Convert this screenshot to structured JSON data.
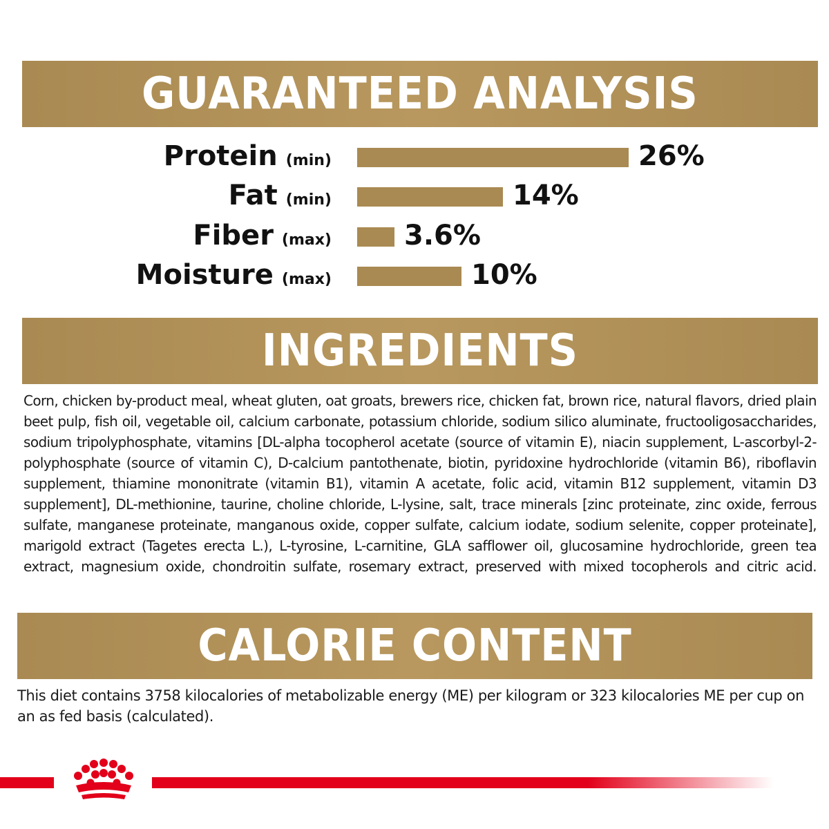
{
  "analysis": {
    "title": "GUARANTEED ANALYSIS",
    "rows": [
      {
        "name": "Protein",
        "qualifier": "(min)",
        "percent_text": "26%",
        "value": 26
      },
      {
        "name": "Fat",
        "qualifier": "(min)",
        "percent_text": "14%",
        "value": 14
      },
      {
        "name": "Fiber",
        "qualifier": "(max)",
        "percent_text": "3.6%",
        "value": 3.6
      },
      {
        "name": "Moisture",
        "qualifier": "(max)",
        "percent_text": "10%",
        "value": 10
      }
    ]
  },
  "ingredients": {
    "title": "INGREDIENTS",
    "text": "Corn, chicken by-product meal, wheat gluten, oat groats, brewers rice, chicken fat, brown rice, natural flavors, dried plain beet pulp, fish oil, vegetable oil, calcium carbonate, potassium chloride, sodium silico aluminate, fructooligosaccharides, sodium tripolyphosphate, vitamins [DL-alpha tocopherol acetate (source of vitamin E), niacin supplement, L-ascorbyl-2-polyphosphate (source of vitamin C), D-calcium pantothenate, biotin, pyridoxine hydrochloride (vitamin B6), riboflavin supplement, thiamine mononitrate (vitamin B1), vitamin A acetate, folic acid, vitamin B12 supplement, vitamin D3 supplement], DL-methionine, taurine, choline chloride, L-lysine, salt, trace minerals [zinc proteinate, zinc oxide, ferrous sulfate, manganese proteinate, manganous oxide, copper sulfate, calcium iodate, sodium selenite, copper proteinate], marigold extract (Tagetes erecta L.), L-tyrosine, L-carnitine, GLA safflower oil, glucosamine hydrochloride, green tea extract, magnesium oxide, chondroitin sulfate, rosemary extract, preserved with mixed tocopherols and citric acid."
  },
  "calorie": {
    "title": "CALORIE CONTENT",
    "text": "This diet contains 3758 kilocalories of metabolizable energy (ME) per kilogram or 323 kilocalories ME per cup on an as fed basis (calculated)."
  },
  "colors": {
    "gold": "#a98a52",
    "brand_red": "#e2001a"
  },
  "icons": {
    "logo": "royal-canin-crown-icon"
  }
}
